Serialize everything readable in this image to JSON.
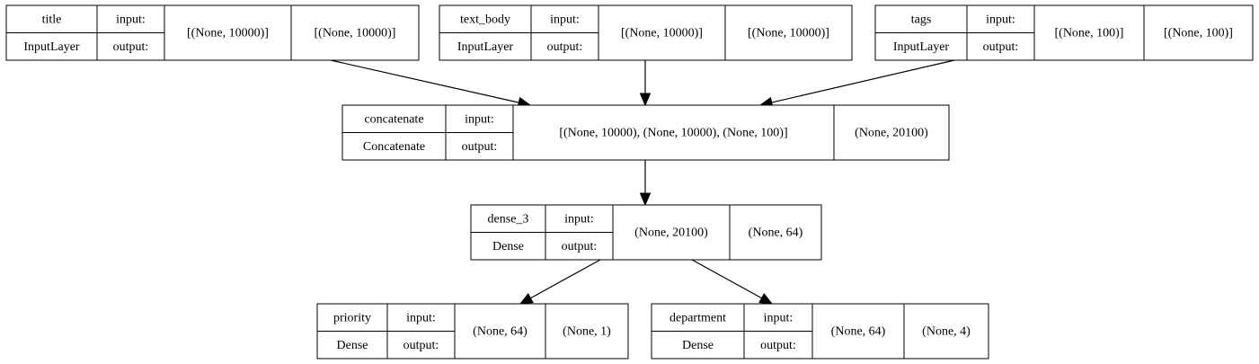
{
  "labels": {
    "input": "input:",
    "output": "output:"
  },
  "nodes": [
    {
      "id": "title",
      "name": "title",
      "layer_type": "InputLayer",
      "input_shape": "[(None, 10000)]",
      "output_shape": "[(None, 10000)]"
    },
    {
      "id": "text_body",
      "name": "text_body",
      "layer_type": "InputLayer",
      "input_shape": "[(None, 10000)]",
      "output_shape": "[(None, 10000)]"
    },
    {
      "id": "tags",
      "name": "tags",
      "layer_type": "InputLayer",
      "input_shape": "[(None, 100)]",
      "output_shape": "[(None, 100)]"
    },
    {
      "id": "concatenate",
      "name": "concatenate",
      "layer_type": "Concatenate",
      "input_shape": "[(None, 10000), (None, 10000), (None, 100)]",
      "output_shape": "(None, 20100)"
    },
    {
      "id": "dense_3",
      "name": "dense_3",
      "layer_type": "Dense",
      "input_shape": "(None, 20100)",
      "output_shape": "(None, 64)"
    },
    {
      "id": "priority",
      "name": "priority",
      "layer_type": "Dense",
      "input_shape": "(None, 64)",
      "output_shape": "(None, 1)"
    },
    {
      "id": "department",
      "name": "department",
      "layer_type": "Dense",
      "input_shape": "(None, 64)",
      "output_shape": "(None, 4)"
    }
  ],
  "edges": [
    {
      "from": "title",
      "to": "concatenate"
    },
    {
      "from": "text_body",
      "to": "concatenate"
    },
    {
      "from": "tags",
      "to": "concatenate"
    },
    {
      "from": "concatenate",
      "to": "dense_3"
    },
    {
      "from": "dense_3",
      "to": "priority"
    },
    {
      "from": "dense_3",
      "to": "department"
    }
  ]
}
